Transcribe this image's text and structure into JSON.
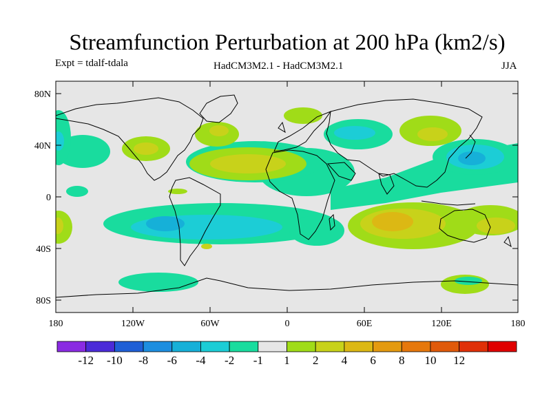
{
  "title": "Streamfunction Perturbation at 200 hPa (km2/s)",
  "experiment": "Expt = tdalf-tdala",
  "models": "HadCM3M2.1 - HadCM3M2.1",
  "season": "JJA",
  "lat_labels": [
    "80N",
    "40N",
    "0",
    "40S",
    "80S"
  ],
  "lon_labels": [
    "180",
    "120W",
    "60W",
    "0",
    "60E",
    "120E",
    "180"
  ],
  "colorbar": {
    "labels": [
      "-12",
      "-10",
      "-8",
      "-6",
      "-4",
      "-2",
      "-1",
      "1",
      "2",
      "4",
      "6",
      "8",
      "10",
      "12"
    ],
    "colors": [
      "#8a2be2",
      "#4b2bd8",
      "#1f5fd6",
      "#1d8ee0",
      "#16b0d8",
      "#1ccdd6",
      "#19dc9e",
      "#e6e6e6",
      "#a0dc18",
      "#c8d21a",
      "#dcb814",
      "#e49a10",
      "#e6780c",
      "#e05a0a",
      "#e03008",
      "#e00000"
    ]
  },
  "map_colors": {
    "background": "#e6e6e6",
    "coast": "#000000"
  }
}
